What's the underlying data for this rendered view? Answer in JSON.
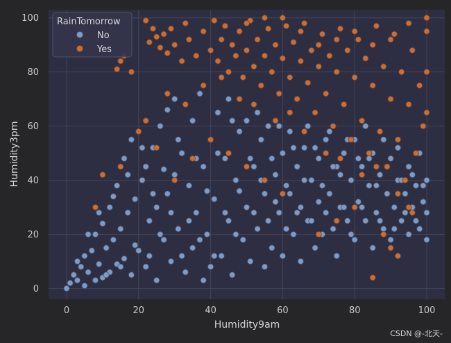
{
  "chart_data": {
    "type": "scatter",
    "title": "",
    "xlabel": "Humidity9am",
    "ylabel": "Humidity3pm",
    "xlim": [
      -5,
      105
    ],
    "ylim": [
      -4,
      103
    ],
    "xticks": [
      0,
      20,
      40,
      60,
      80,
      100
    ],
    "yticks": [
      0,
      20,
      40,
      60,
      80,
      100
    ],
    "grid": true,
    "legend": {
      "title": "RainTomorrow",
      "placement": "top-left",
      "entries": [
        "No",
        "Yes"
      ]
    },
    "series": [
      {
        "name": "No",
        "color": "#7f9bc4",
        "points": [
          [
            0,
            0
          ],
          [
            1,
            2
          ],
          [
            2,
            5
          ],
          [
            3,
            3
          ],
          [
            4,
            8
          ],
          [
            5,
            1
          ],
          [
            5,
            12
          ],
          [
            6,
            6
          ],
          [
            7,
            14
          ],
          [
            8,
            3
          ],
          [
            8,
            20
          ],
          [
            9,
            9
          ],
          [
            10,
            24
          ],
          [
            10,
            4
          ],
          [
            11,
            15
          ],
          [
            12,
            30
          ],
          [
            12,
            6
          ],
          [
            13,
            18
          ],
          [
            14,
            38
          ],
          [
            14,
            9
          ],
          [
            15,
            22
          ],
          [
            16,
            48
          ],
          [
            16,
            11
          ],
          [
            17,
            28
          ],
          [
            18,
            55
          ],
          [
            18,
            5
          ],
          [
            19,
            33
          ],
          [
            20,
            58
          ],
          [
            20,
            14
          ],
          [
            21,
            40
          ],
          [
            22,
            45
          ],
          [
            22,
            8
          ],
          [
            23,
            25
          ],
          [
            24,
            52
          ],
          [
            25,
            30
          ],
          [
            25,
            3
          ],
          [
            26,
            60
          ],
          [
            27,
            18
          ],
          [
            28,
            66
          ],
          [
            28,
            35
          ],
          [
            29,
            10
          ],
          [
            30,
            42
          ],
          [
            30,
            70
          ],
          [
            31,
            22
          ],
          [
            32,
            50
          ],
          [
            33,
            6
          ],
          [
            34,
            38
          ],
          [
            35,
            62
          ],
          [
            35,
            15
          ],
          [
            36,
            28
          ],
          [
            37,
            72
          ],
          [
            38,
            45
          ],
          [
            38,
            3
          ],
          [
            39,
            20
          ],
          [
            40,
            55
          ],
          [
            40,
            8
          ],
          [
            41,
            33
          ],
          [
            42,
            65
          ],
          [
            43,
            12
          ],
          [
            44,
            48
          ],
          [
            45,
            25
          ],
          [
            45,
            70
          ],
          [
            46,
            5
          ],
          [
            47,
            40
          ],
          [
            48,
            58
          ],
          [
            49,
            18
          ],
          [
            50,
            30
          ],
          [
            50,
            62
          ],
          [
            51,
            10
          ],
          [
            52,
            45
          ],
          [
            53,
            22
          ],
          [
            54,
            55
          ],
          [
            55,
            35
          ],
          [
            55,
            8
          ],
          [
            56,
            60
          ],
          [
            57,
            15
          ],
          [
            58,
            42
          ],
          [
            59,
            28
          ],
          [
            60,
            50
          ],
          [
            60,
            12
          ],
          [
            61,
            38
          ],
          [
            62,
            58
          ],
          [
            63,
            20
          ],
          [
            64,
            45
          ],
          [
            65,
            30
          ],
          [
            65,
            10
          ],
          [
            66,
            52
          ],
          [
            67,
            25
          ],
          [
            68,
            40
          ],
          [
            69,
            15
          ],
          [
            70,
            48
          ],
          [
            70,
            32
          ],
          [
            71,
            20
          ],
          [
            72,
            55
          ],
          [
            73,
            35
          ],
          [
            74,
            22
          ],
          [
            75,
            45
          ],
          [
            75,
            12
          ],
          [
            76,
            30
          ],
          [
            77,
            50
          ],
          [
            78,
            25
          ],
          [
            79,
            40
          ],
          [
            80,
            18
          ],
          [
            80,
            55
          ],
          [
            81,
            32
          ],
          [
            82,
            45
          ],
          [
            83,
            25
          ],
          [
            84,
            38
          ],
          [
            85,
            15
          ],
          [
            85,
            50
          ],
          [
            86,
            28
          ],
          [
            87,
            42
          ],
          [
            88,
            22
          ],
          [
            89,
            35
          ],
          [
            90,
            48
          ],
          [
            90,
            18
          ],
          [
            91,
            30
          ],
          [
            92,
            40
          ],
          [
            93,
            25
          ],
          [
            94,
            35
          ],
          [
            95,
            20
          ],
          [
            95,
            45
          ],
          [
            96,
            30
          ],
          [
            97,
            38
          ],
          [
            98,
            22
          ],
          [
            99,
            32
          ],
          [
            100,
            28
          ],
          [
            100,
            40
          ],
          [
            100,
            18
          ],
          [
            3,
            10
          ],
          [
            6,
            20
          ],
          [
            9,
            28
          ],
          [
            11,
            5
          ],
          [
            13,
            34
          ],
          [
            15,
            8
          ],
          [
            17,
            42
          ],
          [
            19,
            16
          ],
          [
            21,
            52
          ],
          [
            23,
            12
          ],
          [
            24,
            35
          ],
          [
            26,
            20
          ],
          [
            27,
            44
          ],
          [
            29,
            28
          ],
          [
            31,
            55
          ],
          [
            32,
            12
          ],
          [
            34,
            25
          ],
          [
            36,
            48
          ],
          [
            37,
            18
          ],
          [
            39,
            36
          ],
          [
            41,
            12
          ],
          [
            42,
            50
          ],
          [
            44,
            28
          ],
          [
            46,
            62
          ],
          [
            47,
            20
          ],
          [
            48,
            36
          ],
          [
            51,
            48
          ],
          [
            52,
            28
          ],
          [
            53,
            65
          ],
          [
            54,
            40
          ],
          [
            56,
            25
          ],
          [
            57,
            48
          ],
          [
            58,
            32
          ],
          [
            59,
            60
          ],
          [
            61,
            22
          ],
          [
            62,
            35
          ],
          [
            63,
            52
          ],
          [
            64,
            28
          ],
          [
            66,
            40
          ],
          [
            67,
            60
          ],
          [
            68,
            25
          ],
          [
            69,
            52
          ],
          [
            71,
            38
          ],
          [
            72,
            28
          ],
          [
            73,
            58
          ],
          [
            74,
            45
          ],
          [
            76,
            42
          ],
          [
            77,
            30
          ],
          [
            78,
            55
          ],
          [
            79,
            20
          ],
          [
            81,
            48
          ],
          [
            82,
            30
          ],
          [
            83,
            60
          ],
          [
            84,
            48
          ],
          [
            86,
            38
          ],
          [
            87,
            25
          ],
          [
            88,
            55
          ],
          [
            89,
            45
          ],
          [
            91,
            22
          ],
          [
            92,
            52
          ],
          [
            93,
            40
          ],
          [
            94,
            28
          ],
          [
            96,
            42
          ],
          [
            97,
            25
          ],
          [
            98,
            50
          ],
          [
            99,
            38
          ]
        ]
      },
      {
        "name": "Yes",
        "color": "#c46f3c",
        "points": [
          [
            14,
            81
          ],
          [
            15,
            84
          ],
          [
            16,
            86
          ],
          [
            18,
            80
          ],
          [
            22,
            99
          ],
          [
            23,
            91
          ],
          [
            24,
            96
          ],
          [
            25,
            93
          ],
          [
            26,
            89
          ],
          [
            27,
            94
          ],
          [
            28,
            87
          ],
          [
            29,
            96
          ],
          [
            30,
            90
          ],
          [
            32,
            84
          ],
          [
            33,
            98
          ],
          [
            34,
            92
          ],
          [
            36,
            86
          ],
          [
            38,
            95
          ],
          [
            40,
            88
          ],
          [
            41,
            99
          ],
          [
            42,
            84
          ],
          [
            43,
            92
          ],
          [
            44,
            97
          ],
          [
            45,
            80
          ],
          [
            46,
            90
          ],
          [
            47,
            86
          ],
          [
            48,
            95
          ],
          [
            49,
            78
          ],
          [
            50,
            88
          ],
          [
            51,
            99
          ],
          [
            52,
            82
          ],
          [
            53,
            92
          ],
          [
            54,
            75
          ],
          [
            55,
            86
          ],
          [
            56,
            96
          ],
          [
            57,
            80
          ],
          [
            58,
            90
          ],
          [
            59,
            72
          ],
          [
            60,
            85
          ],
          [
            61,
            97
          ],
          [
            62,
            78
          ],
          [
            63,
            91
          ],
          [
            64,
            70
          ],
          [
            65,
            84
          ],
          [
            66,
            98
          ],
          [
            67,
            76
          ],
          [
            68,
            88
          ],
          [
            69,
            65
          ],
          [
            70,
            82
          ],
          [
            71,
            94
          ],
          [
            72,
            72
          ],
          [
            73,
            86
          ],
          [
            74,
            60
          ],
          [
            75,
            80
          ],
          [
            76,
            96
          ],
          [
            77,
            68
          ],
          [
            78,
            88
          ],
          [
            79,
            55
          ],
          [
            80,
            78
          ],
          [
            81,
            92
          ],
          [
            82,
            62
          ],
          [
            83,
            85
          ],
          [
            84,
            50
          ],
          [
            85,
            75
          ],
          [
            86,
            97
          ],
          [
            87,
            58
          ],
          [
            88,
            82
          ],
          [
            89,
            45
          ],
          [
            90,
            70
          ],
          [
            91,
            94
          ],
          [
            92,
            55
          ],
          [
            93,
            80
          ],
          [
            94,
            40
          ],
          [
            95,
            68
          ],
          [
            96,
            88
          ],
          [
            97,
            50
          ],
          [
            98,
            75
          ],
          [
            99,
            60
          ],
          [
            100,
            95
          ],
          [
            100,
            80
          ],
          [
            100,
            65
          ],
          [
            100,
            100
          ],
          [
            85,
            4
          ],
          [
            90,
            15
          ],
          [
            88,
            20
          ],
          [
            92,
            12
          ],
          [
            95,
            30
          ],
          [
            80,
            30
          ],
          [
            75,
            25
          ],
          [
            70,
            20
          ],
          [
            60,
            35
          ],
          [
            55,
            40
          ],
          [
            50,
            45
          ],
          [
            45,
            50
          ],
          [
            40,
            55
          ],
          [
            35,
            48
          ],
          [
            30,
            40
          ],
          [
            25,
            52
          ],
          [
            20,
            58
          ],
          [
            15,
            45
          ],
          [
            10,
            42
          ],
          [
            8,
            30
          ],
          [
            22,
            62
          ],
          [
            28,
            72
          ],
          [
            33,
            68
          ],
          [
            38,
            75
          ],
          [
            43,
            78
          ],
          [
            48,
            70
          ],
          [
            52,
            68
          ],
          [
            58,
            62
          ],
          [
            62,
            65
          ],
          [
            66,
            58
          ],
          [
            72,
            50
          ],
          [
            76,
            48
          ],
          [
            82,
            42
          ],
          [
            86,
            45
          ],
          [
            92,
            35
          ],
          [
            96,
            28
          ],
          [
            70,
            90
          ],
          [
            75,
            92
          ],
          [
            80,
            95
          ],
          [
            85,
            90
          ],
          [
            90,
            92
          ],
          [
            95,
            98
          ],
          [
            60,
            100
          ],
          [
            65,
            95
          ],
          [
            55,
            100
          ],
          [
            50,
            98
          ]
        ]
      }
    ]
  },
  "watermark": "CSDN @-北天-"
}
